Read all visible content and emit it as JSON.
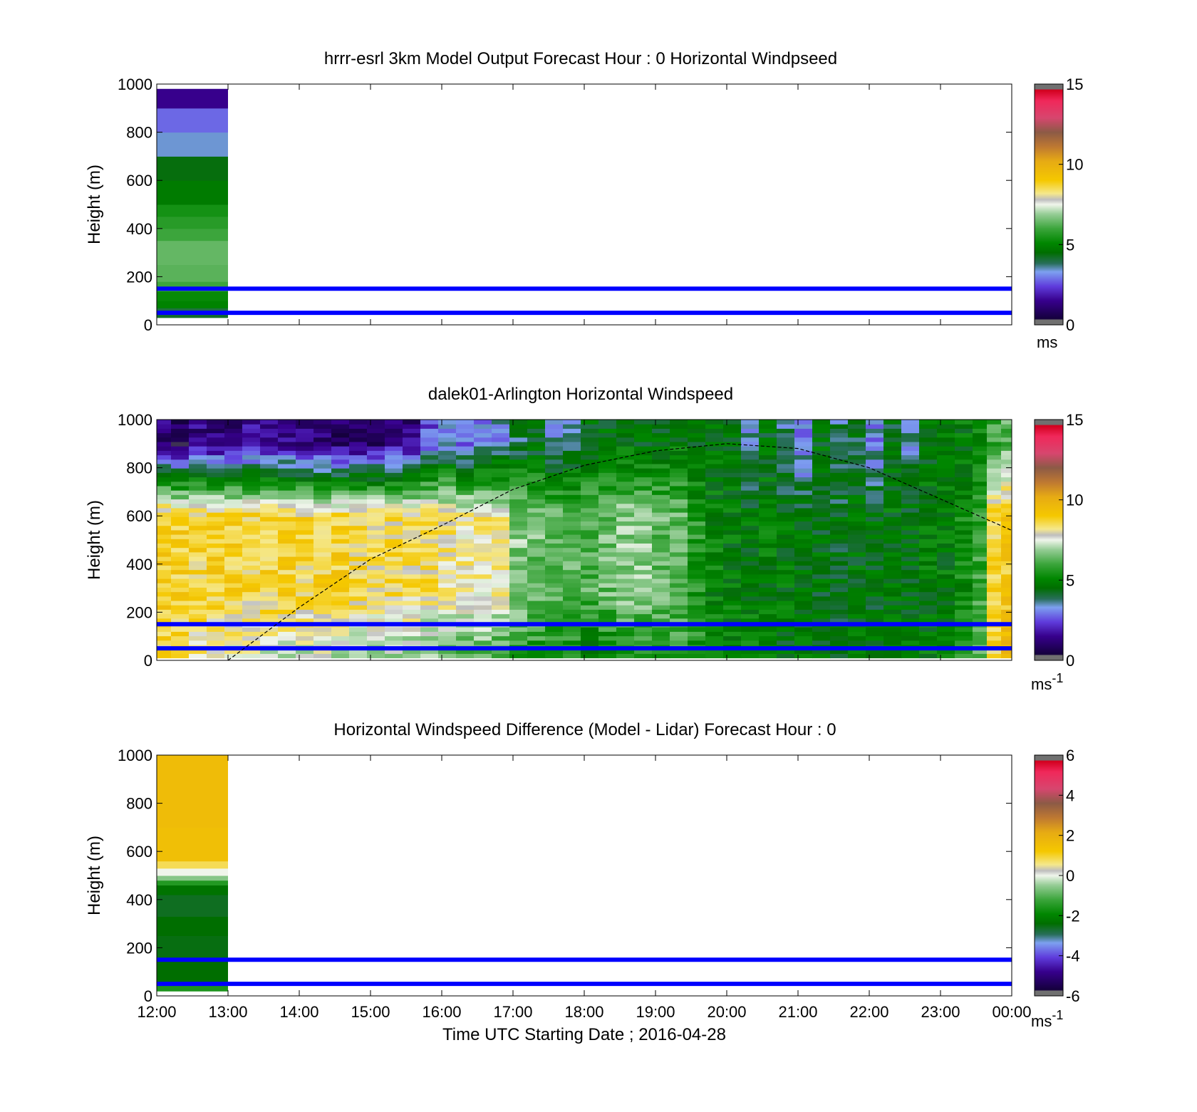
{
  "chart_data": [
    {
      "type": "heatmap",
      "title": "hrrr-esrl 3km Model Output   Forecast Hour : 0 Horizontal Windpseed",
      "ylabel": "Height (m)",
      "xlabel": "",
      "ylim": [
        0,
        1000
      ],
      "yticks": [
        "0",
        "200",
        "400",
        "600",
        "800",
        "1000"
      ],
      "xlim_hours": [
        12,
        24
      ],
      "colorbar": {
        "min": 0,
        "max": 15,
        "ticks": [
          "0",
          "5",
          "10",
          "15"
        ],
        "unit": "ms",
        "unit_sup": ""
      },
      "reference_lines_m": [
        50,
        150
      ],
      "columns": [
        {
          "t0": 12,
          "t1": 13,
          "cells": [
            {
              "z0": 30,
              "z1": 50,
              "v": 4.2
            },
            {
              "z0": 50,
              "z1": 70,
              "v": 4.0
            },
            {
              "z0": 70,
              "z1": 100,
              "v": 5.0
            },
            {
              "z0": 100,
              "z1": 140,
              "v": 5.2
            },
            {
              "z0": 140,
              "z1": 180,
              "v": 6.0
            },
            {
              "z0": 180,
              "z1": 250,
              "v": 6.3
            },
            {
              "z0": 250,
              "z1": 350,
              "v": 6.4
            },
            {
              "z0": 350,
              "z1": 400,
              "v": 6.0
            },
            {
              "z0": 400,
              "z1": 450,
              "v": 5.7
            },
            {
              "z0": 450,
              "z1": 500,
              "v": 5.4
            },
            {
              "z0": 500,
              "z1": 600,
              "v": 4.8
            },
            {
              "z0": 600,
              "z1": 700,
              "v": 4.4
            },
            {
              "z0": 700,
              "z1": 800,
              "v": 3.4
            },
            {
              "z0": 800,
              "z1": 900,
              "v": 2.8
            },
            {
              "z0": 900,
              "z1": 980,
              "v": 1.5
            }
          ]
        }
      ]
    },
    {
      "type": "heatmap",
      "title": "dalek01-Arlington  Horizontal Windspeed",
      "ylabel": "Height (m)",
      "xlabel": "",
      "ylim": [
        0,
        1000
      ],
      "yticks": [
        "0",
        "200",
        "400",
        "600",
        "800",
        "1000"
      ],
      "xlim_hours": [
        12,
        24
      ],
      "colorbar": {
        "min": 0,
        "max": 15,
        "ticks": [
          "0",
          "5",
          "10",
          "15"
        ],
        "unit": "ms",
        "unit_sup": "-1"
      },
      "reference_lines_m": [
        50,
        150
      ],
      "boundary_layer_height_m": [
        [
          13.0,
          0
        ],
        [
          14.0,
          220
        ],
        [
          15.0,
          420
        ],
        [
          16.0,
          560
        ],
        [
          17.0,
          710
        ],
        [
          18.0,
          810
        ],
        [
          19.0,
          870
        ],
        [
          20.0,
          900
        ],
        [
          21.0,
          880
        ],
        [
          22.0,
          800
        ],
        [
          23.0,
          670
        ],
        [
          24.0,
          540
        ]
      ],
      "profile_hours": [
        12.0,
        12.2,
        12.45,
        12.7,
        12.95,
        13.2,
        13.45,
        13.7,
        13.95,
        14.2,
        14.45,
        14.7,
        14.95,
        15.2,
        15.45,
        15.7,
        15.95,
        16.2,
        16.45,
        16.7,
        16.95,
        17.2,
        17.45,
        17.7,
        17.95,
        18.2,
        18.45,
        18.7,
        18.95,
        19.2,
        19.45,
        19.7,
        19.95,
        20.2,
        20.45,
        20.7,
        20.95,
        21.2,
        21.45,
        21.7,
        21.95,
        22.2,
        22.45,
        22.7,
        22.95,
        23.2,
        23.45,
        23.65,
        23.85
      ],
      "profile_end_hour": 24.0,
      "speed_low_mid_top_m_per_s": [
        [
          8.5,
          9.0,
          1.2
        ],
        [
          8.3,
          8.8,
          1.0
        ],
        [
          8.0,
          8.7,
          1.4
        ],
        [
          7.8,
          8.8,
          1.3
        ],
        [
          7.5,
          8.8,
          1.3
        ],
        [
          7.5,
          8.7,
          1.5
        ],
        [
          7.4,
          8.8,
          1.6
        ],
        [
          7.3,
          8.8,
          1.4
        ],
        [
          7.2,
          8.6,
          1.2
        ],
        [
          7.3,
          8.7,
          1.2
        ],
        [
          7.2,
          8.8,
          1.0
        ],
        [
          7.0,
          8.6,
          0.9
        ],
        [
          7.0,
          8.4,
          1.1
        ],
        [
          6.8,
          8.5,
          1.4
        ],
        [
          6.8,
          8.4,
          1.3
        ],
        [
          6.5,
          8.3,
          2.6
        ],
        [
          6.4,
          8.2,
          3.2
        ],
        [
          6.1,
          8.0,
          2.8
        ],
        [
          6.0,
          8.1,
          3.0
        ],
        [
          5.8,
          8.0,
          3.3
        ],
        [
          5.6,
          6.8,
          4.0
        ],
        [
          5.5,
          6.5,
          4.2
        ],
        [
          5.4,
          6.4,
          3.6
        ],
        [
          5.3,
          6.3,
          3.8
        ],
        [
          4.6,
          6.2,
          4.4
        ],
        [
          5.0,
          6.5,
          4.5
        ],
        [
          5.2,
          6.8,
          4.6
        ],
        [
          5.5,
          6.7,
          4.5
        ],
        [
          5.8,
          6.4,
          4.6
        ],
        [
          5.9,
          6.3,
          4.7
        ],
        [
          5.6,
          5.6,
          4.6
        ],
        [
          5.0,
          5.0,
          4.5
        ],
        [
          5.1,
          4.8,
          4.4
        ],
        [
          5.2,
          4.7,
          3.4
        ],
        [
          5.0,
          4.8,
          4.4
        ],
        [
          4.6,
          4.7,
          3.6
        ],
        [
          4.6,
          4.6,
          2.9
        ],
        [
          4.5,
          4.5,
          4.5
        ],
        [
          4.5,
          4.4,
          3.8
        ],
        [
          4.6,
          4.6,
          4.2
        ],
        [
          4.6,
          4.5,
          3.2
        ],
        [
          4.7,
          4.7,
          4.4
        ],
        [
          4.8,
          4.6,
          3.6
        ],
        [
          4.8,
          4.8,
          4.6
        ],
        [
          4.9,
          4.8,
          4.6
        ],
        [
          5.6,
          5.2,
          4.8
        ],
        [
          6.6,
          5.8,
          5.2
        ],
        [
          8.8,
          8.6,
          6.0
        ],
        [
          9.8,
          9.0,
          6.2
        ]
      ]
    },
    {
      "type": "heatmap",
      "title": "Horizontal Windspeed Difference (Model - Lidar) Forecast Hour : 0",
      "ylabel": "Height (m)",
      "xlabel": "Time UTC  Starting Date ; 2016-04-28",
      "ylim": [
        0,
        1000
      ],
      "yticks": [
        "0",
        "200",
        "400",
        "600",
        "800",
        "1000"
      ],
      "xticks": [
        "12:00",
        "13:00",
        "14:00",
        "15:00",
        "16:00",
        "17:00",
        "18:00",
        "19:00",
        "20:00",
        "21:00",
        "22:00",
        "23:00",
        "00:00"
      ],
      "xlim_hours": [
        12,
        24
      ],
      "colorbar": {
        "min": -6,
        "max": 6,
        "ticks": [
          "-6",
          "-4",
          "-2",
          "0",
          "2",
          "4",
          "6"
        ],
        "unit": "ms",
        "unit_sup": "-1"
      },
      "reference_lines_m": [
        50,
        150
      ],
      "columns": [
        {
          "t0": 12,
          "t1": 13,
          "cells": [
            {
              "z0": 20,
              "z1": 60,
              "v": -1.6
            },
            {
              "z0": 60,
              "z1": 150,
              "v": -2.4
            },
            {
              "z0": 150,
              "z1": 250,
              "v": -2.5
            },
            {
              "z0": 250,
              "z1": 330,
              "v": -2.4
            },
            {
              "z0": 330,
              "z1": 420,
              "v": -2.6
            },
            {
              "z0": 420,
              "z1": 460,
              "v": -2.3
            },
            {
              "z0": 460,
              "z1": 480,
              "v": -1.5
            },
            {
              "z0": 480,
              "z1": 500,
              "v": -0.6
            },
            {
              "z0": 500,
              "z1": 530,
              "v": 0.0
            },
            {
              "z0": 530,
              "z1": 560,
              "v": 0.8
            },
            {
              "z0": 560,
              "z1": 700,
              "v": 1.5
            },
            {
              "z0": 700,
              "z1": 1000,
              "v": 1.6
            }
          ]
        }
      ]
    }
  ]
}
